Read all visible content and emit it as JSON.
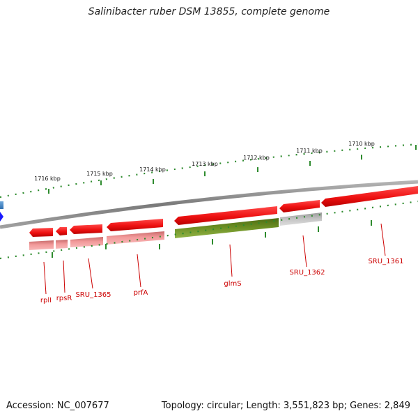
{
  "title": "Salinibacter ruber DSM 13855, complete genome",
  "footer": {
    "accession": "Accession: NC_007677",
    "topology": "Topology: circular; Length: 3,551,823 bp; Genes: 2,849"
  },
  "colors": {
    "backbone": "#8a8a8a",
    "ticks": "#2e8b2e",
    "gene_red": "#ee1111",
    "gene_pink": "#f08a8a",
    "gene_olive": "#6b8e23",
    "gene_grey": "#bdbdbd",
    "label": "#cc0000",
    "marker": "#1a1aff"
  },
  "scale": {
    "unit": "kbp",
    "labels": [
      "1716 kbp",
      "1715 kbp",
      "1714 kbp",
      "1713 kbp",
      "1712 kbp",
      "1711 kbp",
      "1710 kbp"
    ]
  },
  "genes": [
    {
      "label": "rplI",
      "strand": "reverse"
    },
    {
      "label": "rpsR",
      "strand": "reverse"
    },
    {
      "label": "SRU_1365",
      "strand": "reverse"
    },
    {
      "label": "prfA",
      "strand": "reverse"
    },
    {
      "label": "glmS",
      "strand": "reverse"
    },
    {
      "label": "SRU_1362",
      "strand": "reverse"
    },
    {
      "label": "SRU_1361",
      "strand": "reverse"
    }
  ]
}
